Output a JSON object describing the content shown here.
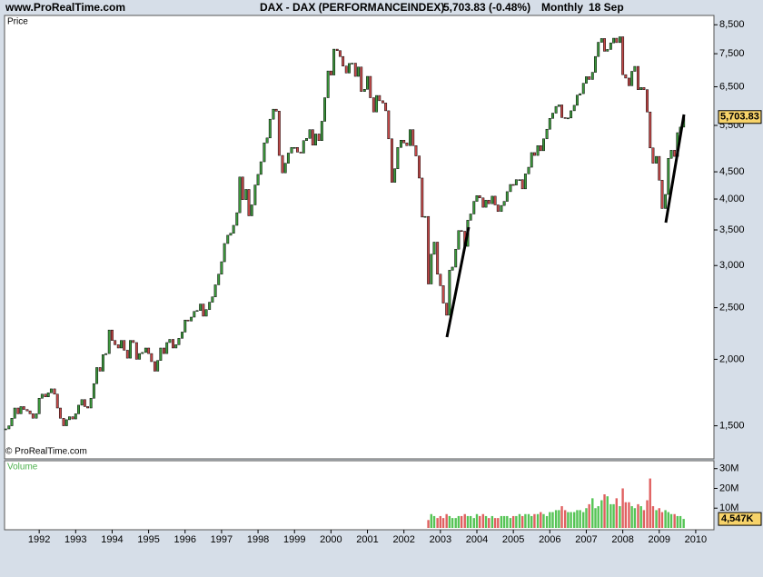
{
  "header": {
    "site": "www.ProRealTime.com",
    "change": "5,703.83 (-0.48%)",
    "period": "Monthly",
    "date": "18 Sep"
  },
  "copyright": "© ProRealTime.com",
  "chart_data": [
    {
      "type": "candlestick",
      "title": "DAX - DAX (PERFORMANCEINDEX)",
      "label": "Price",
      "up_color": "#3c9a3c",
      "down_color": "#c84a4a",
      "log_scale": true,
      "xlim": [
        1991.05,
        2010.5
      ],
      "xticks": [
        1992,
        1993,
        1994,
        1995,
        1996,
        1997,
        1998,
        1999,
        2000,
        2001,
        2002,
        2003,
        2004,
        2005,
        2006,
        2007,
        2008,
        2009,
        2010
      ],
      "ylim": [
        1300,
        8850
      ],
      "yticks": [
        {
          "value": 1500,
          "label": "1,500"
        },
        {
          "value": 2000,
          "label": "2,000"
        },
        {
          "value": 2500,
          "label": "2,500"
        },
        {
          "value": 3000,
          "label": "3,000"
        },
        {
          "value": 3500,
          "label": "3,500"
        },
        {
          "value": 4000,
          "label": "4,000"
        },
        {
          "value": 4500,
          "label": "4,500"
        },
        {
          "value": 5500,
          "label": "5,500"
        },
        {
          "value": 6500,
          "label": "6,500"
        },
        {
          "value": 7500,
          "label": "7,500"
        },
        {
          "value": 8500,
          "label": "8,500"
        }
      ],
      "last_label": "5,703.83",
      "x": [
        1991.08,
        1991.17,
        1991.25,
        1991.33,
        1991.42,
        1991.5,
        1991.58,
        1991.67,
        1991.75,
        1991.83,
        1991.92,
        1992,
        1992.08,
        1992.17,
        1992.25,
        1992.33,
        1992.42,
        1992.5,
        1992.58,
        1992.67,
        1992.75,
        1992.83,
        1992.92,
        1993,
        1993.08,
        1993.17,
        1993.25,
        1993.33,
        1993.42,
        1993.5,
        1993.58,
        1993.67,
        1993.75,
        1993.83,
        1993.92,
        1994,
        1994.08,
        1994.17,
        1994.25,
        1994.33,
        1994.42,
        1994.5,
        1994.58,
        1994.67,
        1994.75,
        1994.83,
        1994.92,
        1995,
        1995.08,
        1995.17,
        1995.25,
        1995.33,
        1995.42,
        1995.5,
        1995.58,
        1995.67,
        1995.75,
        1995.83,
        1995.92,
        1996,
        1996.08,
        1996.17,
        1996.25,
        1996.33,
        1996.42,
        1996.5,
        1996.58,
        1996.67,
        1996.75,
        1996.83,
        1996.92,
        1997,
        1997.08,
        1997.17,
        1997.25,
        1997.33,
        1997.42,
        1997.5,
        1997.58,
        1997.67,
        1997.75,
        1997.83,
        1997.92,
        1998,
        1998.08,
        1998.17,
        1998.25,
        1998.33,
        1998.42,
        1998.5,
        1998.58,
        1998.67,
        1998.75,
        1998.83,
        1998.92,
        1999,
        1999.08,
        1999.17,
        1999.25,
        1999.33,
        1999.42,
        1999.5,
        1999.58,
        1999.67,
        1999.75,
        1999.83,
        1999.92,
        2000,
        2000.08,
        2000.17,
        2000.25,
        2000.33,
        2000.42,
        2000.5,
        2000.58,
        2000.67,
        2000.75,
        2000.83,
        2000.92,
        2001,
        2001.08,
        2001.17,
        2001.25,
        2001.33,
        2001.42,
        2001.5,
        2001.58,
        2001.67,
        2001.75,
        2001.83,
        2001.92,
        2002,
        2002.08,
        2002.17,
        2002.25,
        2002.33,
        2002.42,
        2002.5,
        2002.58,
        2002.67,
        2002.75,
        2002.83,
        2002.92,
        2003,
        2003.08,
        2003.17,
        2003.25,
        2003.33,
        2003.42,
        2003.5,
        2003.58,
        2003.67,
        2003.75,
        2003.83,
        2003.92,
        2004,
        2004.08,
        2004.17,
        2004.25,
        2004.33,
        2004.42,
        2004.5,
        2004.58,
        2004.67,
        2004.75,
        2004.83,
        2004.92,
        2005,
        2005.08,
        2005.17,
        2005.25,
        2005.33,
        2005.42,
        2005.5,
        2005.58,
        2005.67,
        2005.75,
        2005.83,
        2005.92,
        2006,
        2006.08,
        2006.17,
        2006.25,
        2006.33,
        2006.42,
        2006.5,
        2006.58,
        2006.67,
        2006.75,
        2006.83,
        2006.92,
        2007,
        2007.08,
        2007.17,
        2007.25,
        2007.33,
        2007.42,
        2007.5,
        2007.58,
        2007.67,
        2007.75,
        2007.83,
        2007.92,
        2008,
        2008.08,
        2008.17,
        2008.25,
        2008.33,
        2008.42,
        2008.5,
        2008.58,
        2008.67,
        2008.75,
        2008.83,
        2008.92,
        2009,
        2009.08,
        2009.17,
        2009.25,
        2009.33,
        2009.42,
        2009.5,
        2009.58,
        2009.67
      ],
      "values": [
        1480,
        1500,
        1550,
        1620,
        1580,
        1630,
        1610,
        1600,
        1580,
        1550,
        1580,
        1690,
        1720,
        1700,
        1730,
        1760,
        1720,
        1620,
        1550,
        1500,
        1540,
        1560,
        1545,
        1580,
        1640,
        1680,
        1630,
        1620,
        1690,
        1800,
        1930,
        1900,
        2040,
        2050,
        2270,
        2170,
        2130,
        2100,
        2170,
        2080,
        2010,
        2170,
        2150,
        2000,
        2050,
        2060,
        2100,
        2050,
        1980,
        1900,
        1990,
        2100,
        2050,
        2150,
        2180,
        2100,
        2130,
        2190,
        2250,
        2370,
        2360,
        2400,
        2460,
        2470,
        2540,
        2410,
        2480,
        2560,
        2620,
        2760,
        2890,
        3050,
        3300,
        3420,
        3450,
        3570,
        3770,
        4400,
        3990,
        4170,
        3720,
        3900,
        4250,
        4450,
        4700,
        5100,
        5210,
        5650,
        5900,
        5850,
        4830,
        4480,
        4670,
        4880,
        5000,
        5000,
        4900,
        4880,
        5150,
        5200,
        5400,
        5050,
        5300,
        5150,
        5600,
        6200,
        6960,
        6840,
        7650,
        7600,
        7410,
        7110,
        6900,
        7190,
        7200,
        6800,
        7080,
        6370,
        6430,
        6800,
        6200,
        5830,
        6260,
        6120,
        6060,
        5860,
        5190,
        4300,
        4560,
        5000,
        5160,
        5100,
        5040,
        5400,
        5040,
        4820,
        4380,
        3700,
        3710,
        2770,
        3150,
        3320,
        2890,
        2750,
        2550,
        2420,
        2940,
        2980,
        3220,
        3490,
        3480,
        3260,
        3650,
        3750,
        3960,
        4060,
        4020,
        3860,
        3980,
        3920,
        4050,
        3900,
        3790,
        3890,
        3960,
        4130,
        4260,
        4250,
        4350,
        4350,
        4180,
        4460,
        4590,
        4890,
        4830,
        5040,
        4930,
        5190,
        5410,
        5670,
        5800,
        5970,
        6010,
        5690,
        5680,
        5680,
        5860,
        6000,
        6270,
        6310,
        6600,
        6790,
        6710,
        6920,
        7410,
        7880,
        8010,
        7580,
        7640,
        7860,
        8020,
        7870,
        8070,
        6850,
        6750,
        6530,
        6950,
        7100,
        6420,
        6480,
        6420,
        5830,
        4990,
        4670,
        4810,
        4340,
        3840,
        4080,
        4770,
        4940,
        4810,
        5330,
        5460,
        5703.83
      ]
    },
    {
      "type": "bar",
      "label": "Volume",
      "up_color": "#55c455",
      "down_color": "#e06060",
      "ylim": [
        0,
        34
      ],
      "yticks": [
        {
          "value": 10,
          "label": "10M"
        },
        {
          "value": 20,
          "label": "20M"
        },
        {
          "value": 30,
          "label": "30M"
        }
      ],
      "last_label": "4,547K",
      "x": [
        2002.67,
        2002.75,
        2002.83,
        2002.92,
        2003,
        2003.08,
        2003.17,
        2003.25,
        2003.33,
        2003.42,
        2003.5,
        2003.58,
        2003.67,
        2003.75,
        2003.83,
        2003.92,
        2004,
        2004.08,
        2004.17,
        2004.25,
        2004.33,
        2004.42,
        2004.5,
        2004.58,
        2004.67,
        2004.75,
        2004.83,
        2004.92,
        2005,
        2005.08,
        2005.17,
        2005.25,
        2005.33,
        2005.42,
        2005.5,
        2005.58,
        2005.67,
        2005.75,
        2005.83,
        2005.92,
        2006,
        2006.08,
        2006.17,
        2006.25,
        2006.33,
        2006.42,
        2006.5,
        2006.58,
        2006.67,
        2006.75,
        2006.83,
        2006.92,
        2007,
        2007.08,
        2007.17,
        2007.25,
        2007.33,
        2007.42,
        2007.5,
        2007.58,
        2007.67,
        2007.75,
        2007.83,
        2007.92,
        2008,
        2008.08,
        2008.17,
        2008.25,
        2008.33,
        2008.42,
        2008.5,
        2008.58,
        2008.67,
        2008.75,
        2008.83,
        2008.92,
        2009,
        2009.08,
        2009.17,
        2009.25,
        2009.33,
        2009.42,
        2009.5,
        2009.58,
        2009.67
      ],
      "values": [
        4,
        7,
        6,
        5,
        6,
        5,
        7,
        6,
        5,
        5,
        6,
        6,
        7,
        6,
        6,
        5,
        7,
        6,
        7,
        6,
        5,
        6,
        5,
        5,
        6,
        6,
        6,
        5,
        6,
        6,
        7,
        6,
        7,
        7,
        6,
        7,
        7,
        8,
        7,
        6,
        8,
        8,
        9,
        9,
        11,
        9,
        8,
        8,
        8,
        9,
        9,
        8,
        10,
        12,
        15,
        10,
        11,
        14,
        17,
        16,
        12,
        12,
        15,
        11,
        20,
        13,
        13,
        11,
        10,
        12,
        11,
        9,
        14,
        25,
        11,
        9,
        10,
        8,
        9,
        8,
        7,
        7,
        6,
        6,
        4.547
      ]
    }
  ]
}
